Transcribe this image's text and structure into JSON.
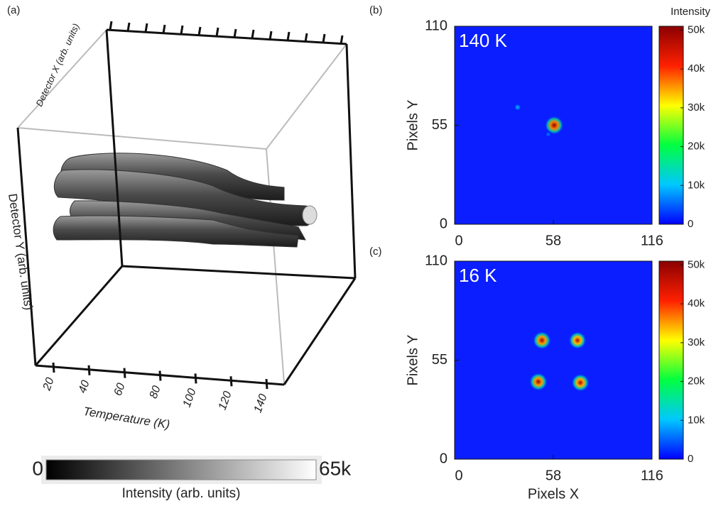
{
  "chart_data": [
    {
      "type": "volume",
      "panel_label": "(a)",
      "xlabel": "Temperature (K)",
      "ylabel": "Detector Y (arb. units)",
      "zlabel": "Detector X (arb. units)",
      "xlim": [
        10,
        150
      ],
      "xticks": [
        20,
        40,
        60,
        80,
        100,
        120,
        140
      ],
      "colorbar": {
        "label": "Intensity (arb. units)",
        "clim": [
          0,
          65000
        ],
        "ticks": [
          0,
          {
            "value": 65000,
            "label": "65k"
          }
        ],
        "colors": [
          "#000000",
          "#ffffff"
        ]
      }
    },
    {
      "type": "heatmap",
      "panel_label": "(b)",
      "annotation": "140 K",
      "ylabel": "Pixels Y",
      "xlim": [
        0,
        116
      ],
      "xticks": [
        0,
        58,
        116
      ],
      "ylim": [
        0,
        110
      ],
      "yticks": [
        0,
        55,
        110
      ],
      "background": "#0a1eff",
      "colorbar": {
        "title": "Intensity",
        "clim": [
          0,
          51000
        ],
        "colors": [
          "#0000ff",
          "#00c8ff",
          "#00ff40",
          "#ffff00",
          "#ff2000",
          "#8b0000"
        ],
        "ticks": [
          0,
          {
            "value": 10000,
            "label": "10k"
          },
          {
            "value": 20000,
            "label": "20k"
          },
          {
            "value": 30000,
            "label": "30k"
          },
          {
            "value": 40000,
            "label": "40k"
          },
          {
            "value": 50000,
            "label": "50k"
          }
        ]
      },
      "peaks": {
        "x": [
          58.5,
          37,
          55
        ],
        "y": [
          55,
          65,
          50
        ],
        "values": [
          52000,
          9000,
          6000
        ]
      }
    },
    {
      "type": "heatmap",
      "panel_label": "(c)",
      "annotation": "16 K",
      "xlabel": "Pixels X",
      "ylabel": "Pixels Y",
      "xlim": [
        0,
        116
      ],
      "xticks": [
        0,
        58,
        116
      ],
      "ylim": [
        0,
        110
      ],
      "yticks": [
        0,
        55,
        110
      ],
      "background": "#0a1eff",
      "colorbar": {
        "clim": [
          0,
          51000
        ],
        "colors": [
          "#0000ff",
          "#00c8ff",
          "#00ff40",
          "#ffff00",
          "#ff2000",
          "#8b0000"
        ],
        "ticks": [
          0,
          {
            "value": 10000,
            "label": "10k"
          },
          {
            "value": 20000,
            "label": "20k"
          },
          {
            "value": 30000,
            "label": "30k"
          },
          {
            "value": 40000,
            "label": "40k"
          },
          {
            "value": 50000,
            "label": "50k"
          }
        ]
      },
      "peaks": {
        "x": [
          51.3,
          72.2,
          49.2,
          73.9
        ],
        "y": [
          66,
          66,
          43,
          42.5
        ],
        "values": [
          50000,
          48000,
          50000,
          49000
        ]
      }
    }
  ]
}
